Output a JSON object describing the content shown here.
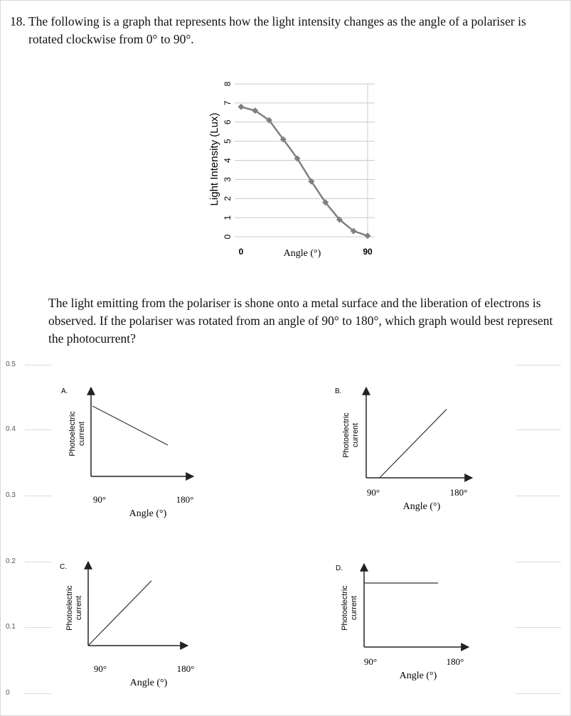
{
  "question": {
    "number": "18.",
    "line1": "The following is a graph that represents how the light intensity changes as the angle of a polariser is",
    "line2": "rotated clockwise from 0° to 90°."
  },
  "paragraph": "The light emitting from the polariser is shone onto a metal surface and the liberation of electrons is observed. If the polariser was rotated from an angle of 90° to 180°, which graph would best represent the photocurrent?",
  "left_axis_ticks": [
    "0.5",
    "0.4",
    "0.3",
    "0.2",
    "0.1",
    "0"
  ],
  "chart_data": [
    {
      "type": "line",
      "xlabel": "Angle (°)",
      "ylabel": "Light Intensity (Lux)",
      "x_tick_labels": [
        "0",
        "90"
      ],
      "y_tick_labels": [
        "0",
        "1",
        "2",
        "3",
        "4",
        "5",
        "6",
        "7",
        "8"
      ],
      "xlim": [
        0,
        90
      ],
      "ylim": [
        0,
        8
      ],
      "grid": true,
      "x": [
        0,
        10,
        20,
        30,
        40,
        50,
        60,
        70,
        80,
        90
      ],
      "y": [
        6.8,
        6.6,
        6.1,
        5.1,
        4.1,
        2.9,
        1.8,
        0.9,
        0.3,
        0.05
      ],
      "series_color": "#808080"
    },
    {
      "type": "line",
      "option": "A.",
      "xlabel": "Angle (°)",
      "ylabel_line1": "Photoelectric",
      "ylabel_line2": "current",
      "x_tick_labels": [
        "90°",
        "180°"
      ],
      "x": [
        90,
        180
      ],
      "y": [
        0.9,
        0.4
      ],
      "xlim": [
        90,
        180
      ],
      "ylim": [
        0,
        1
      ]
    },
    {
      "type": "line",
      "option": "B.",
      "xlabel": "Angle (°)",
      "ylabel_line1": "Photoelectric",
      "ylabel_line2": "current",
      "x_tick_labels": [
        "90°",
        "180°"
      ],
      "x": [
        105,
        180
      ],
      "y": [
        0,
        0.9
      ],
      "xlim": [
        90,
        180
      ],
      "ylim": [
        0,
        1
      ]
    },
    {
      "type": "line",
      "option": "C.",
      "xlabel": "Angle (°)",
      "ylabel_line1": "Photoelectric",
      "ylabel_line2": "current",
      "x_tick_labels": [
        "90°",
        "180°"
      ],
      "x": [
        90,
        180
      ],
      "y": [
        0,
        0.95
      ],
      "xlim": [
        90,
        180
      ],
      "ylim": [
        0,
        1
      ]
    },
    {
      "type": "line",
      "option": "D.",
      "xlabel": "Angle (°)",
      "ylabel_line1": "Photoelectric",
      "ylabel_line2": "current",
      "x_tick_labels": [
        "90°",
        "180°"
      ],
      "x": [
        90,
        180
      ],
      "y": [
        0.75,
        0.75
      ],
      "xlim": [
        90,
        180
      ],
      "ylim": [
        0,
        1
      ]
    }
  ]
}
